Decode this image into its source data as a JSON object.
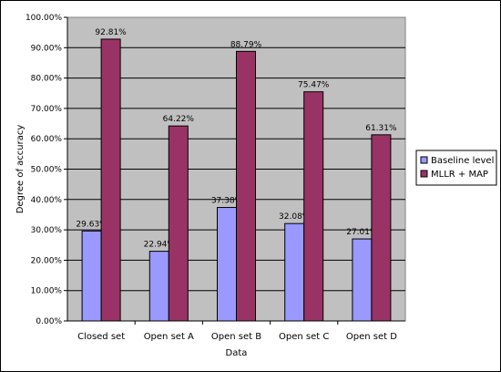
{
  "chart_data": {
    "type": "bar",
    "categories": [
      "Closed set",
      "Open set A",
      "Open set B",
      "Open set C",
      "Open set D"
    ],
    "series": [
      {
        "name": "Baseline level",
        "values": [
          29.63,
          22.94,
          37.38,
          32.08,
          27.01
        ],
        "color": "#9999ff"
      },
      {
        "name": "MLLR + MAP",
        "values": [
          92.81,
          64.22,
          88.79,
          75.47,
          61.31
        ],
        "color": "#993366"
      }
    ],
    "data_labels": [
      [
        "29.63%",
        "22.94%",
        "37.38%",
        "32.08%",
        "27.01%"
      ],
      [
        "92.81%",
        "64.22%",
        "88.79%",
        "75.47%",
        "61.31%"
      ]
    ],
    "xlabel": "Data",
    "ylabel": "Degree of accuracy",
    "ylim": [
      0,
      100
    ],
    "yticks": [
      "0.00%",
      "10.00%",
      "20.00%",
      "30.00%",
      "40.00%",
      "50.00%",
      "60.00%",
      "70.00%",
      "80.00%",
      "90.00%",
      "100.00%"
    ],
    "plot_background": "#c0c0c0",
    "grid": true,
    "legend_position": "right"
  }
}
